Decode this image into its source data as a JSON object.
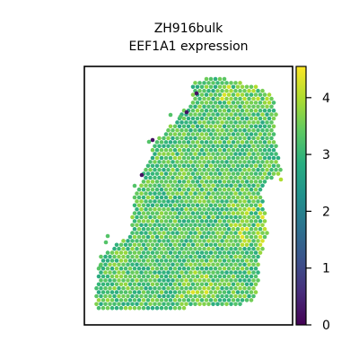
{
  "chart_data": {
    "type": "scatter",
    "title": [
      "ZH916bulk",
      "EEF1A1 expression"
    ],
    "xlabel": "",
    "ylabel": "",
    "x_ticks": [],
    "y_ticks": [],
    "colorbar": {
      "colormap": "viridis",
      "range": [
        0,
        4.55
      ],
      "ticks": [
        0,
        1,
        2,
        3,
        4
      ],
      "tick_labels": [
        "0",
        "1",
        "2",
        "3",
        "4"
      ]
    },
    "grid": false,
    "legend": "none",
    "spot_value_summary": {
      "typical": 3.3,
      "low_outliers": 0.2,
      "high_hotspots": 4.4
    }
  },
  "colors": {
    "background": "#ffffff",
    "axes": "#000000"
  }
}
